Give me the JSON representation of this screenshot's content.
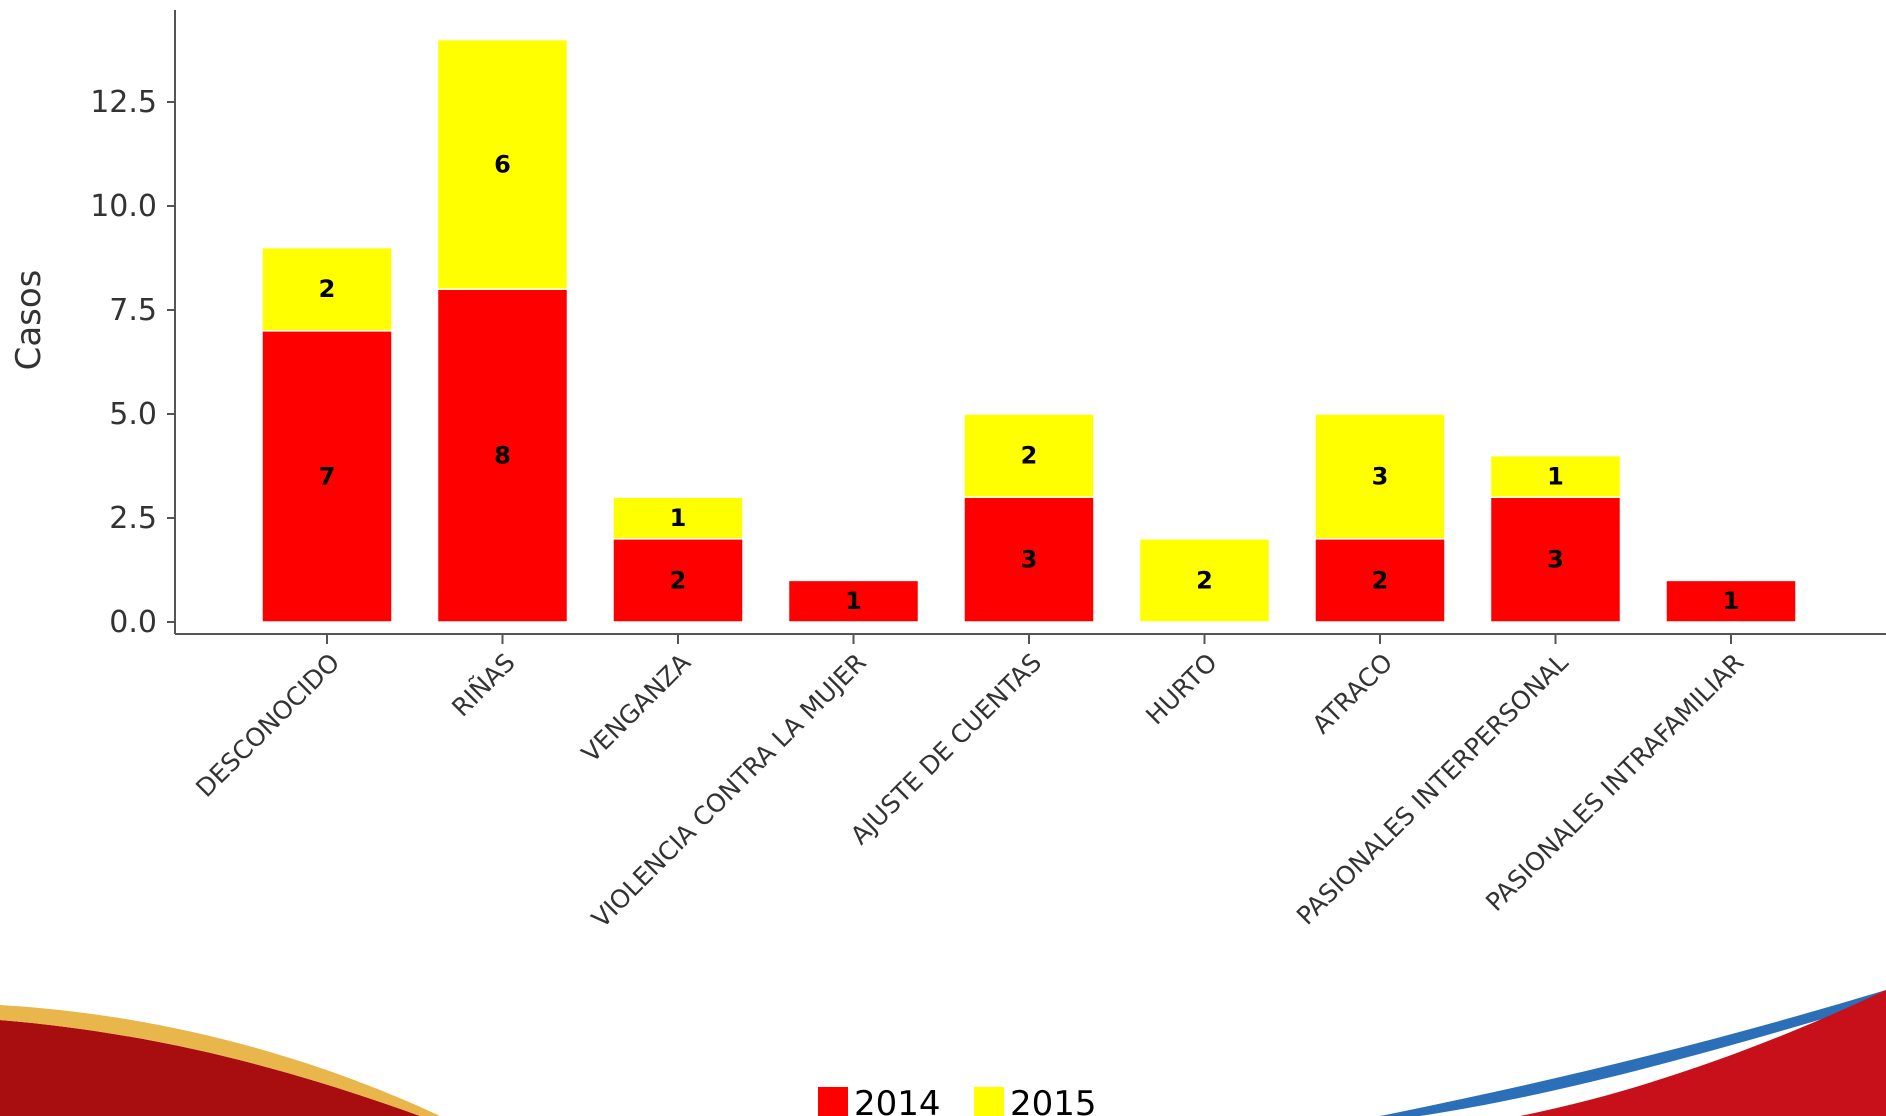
{
  "chart_data": {
    "type": "bar",
    "stacked": true,
    "title": "",
    "xlabel": "",
    "ylabel": "Casos",
    "ylim": [
      0,
      14.5
    ],
    "yticks": [
      "0.0",
      "2.5",
      "5.0",
      "7.5",
      "10.0",
      "12.5"
    ],
    "categories": [
      "DESCONOCIDO",
      "RIÑAS",
      "VENGANZA",
      "VIOLENCIA CONTRA LA MUJER",
      "AJUSTE DE CUENTAS",
      "HURTO",
      "ATRACO",
      "PASIONALES INTERPERSONAL",
      "PASIONALES INTRAFAMILIAR"
    ],
    "series": [
      {
        "name": "2014",
        "color": "#ff0000",
        "values": [
          7,
          8,
          2,
          1,
          3,
          0,
          2,
          3,
          1
        ]
      },
      {
        "name": "2015",
        "color": "#ffff00",
        "values": [
          2,
          6,
          1,
          0,
          2,
          2,
          3,
          1,
          0
        ]
      }
    ],
    "legend_position": "bottom-center",
    "grid": false
  },
  "decoration": {
    "footer_wave_colors": [
      "#a80d10",
      "#e8b64a",
      "#2a6fb8",
      "#c8101a"
    ]
  }
}
